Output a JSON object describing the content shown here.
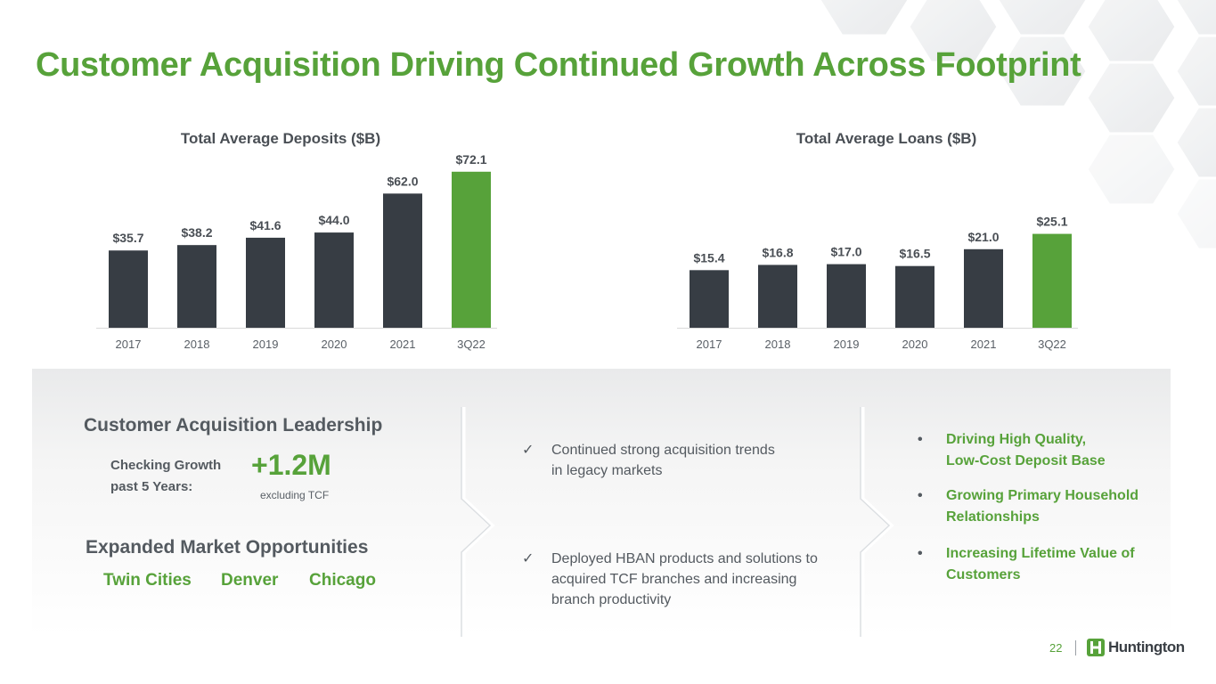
{
  "title": "Customer Acquisition Driving Continued Growth Across Footprint",
  "colors": {
    "green": "#57a23a",
    "dark": "#373d44",
    "text": "#545a60"
  },
  "chart_data": [
    {
      "type": "bar",
      "title": "Total Average Deposits",
      "title_unit": "($B)",
      "categories": [
        "2017",
        "2018",
        "2019",
        "2020",
        "2021",
        "3Q22"
      ],
      "values": [
        35.7,
        38.2,
        41.6,
        44.0,
        62.0,
        72.1
      ],
      "data_labels": [
        "$35.7",
        "$38.2",
        "$41.6",
        "$44.0",
        "$62.0",
        "$72.1"
      ],
      "highlight_last": true
    },
    {
      "type": "bar",
      "title": "Total Average Loans",
      "title_unit": "($B)",
      "categories": [
        "2017",
        "2018",
        "2019",
        "2020",
        "2021",
        "3Q22"
      ],
      "values": [
        15.4,
        16.8,
        17.0,
        16.5,
        21.0,
        25.1
      ],
      "data_labels": [
        "$15.4",
        "$16.8",
        "$17.0",
        "$16.5",
        "$21.0",
        "$25.1"
      ],
      "highlight_last": true
    }
  ],
  "leadership": {
    "heading": "Customer Acquisition Leadership",
    "checking_label": "Checking Growth past 5 Years:",
    "value": "+1.2M",
    "note": "excluding TCF"
  },
  "markets": {
    "heading": "Expanded Market Opportunities",
    "cities": [
      "Twin Cities",
      "Denver",
      "Chicago"
    ]
  },
  "checks": [
    {
      "mark": "✓",
      "text": "Continued strong acquisition trends in legacy markets"
    },
    {
      "mark": "✓",
      "text": "Deployed HBAN products and solutions to acquired TCF branches and increasing branch productivity"
    }
  ],
  "bullets": [
    {
      "mark": "•",
      "text": "Driving High Quality, Low-Cost Deposit Base"
    },
    {
      "mark": "•",
      "text": "Growing Primary Household Relationships"
    },
    {
      "mark": "•",
      "text": "Increasing Lifetime Value of Customers"
    }
  ],
  "footer": {
    "page": "22",
    "logo_text": "Huntington",
    "logo_icon": "huntington-logo-icon"
  }
}
